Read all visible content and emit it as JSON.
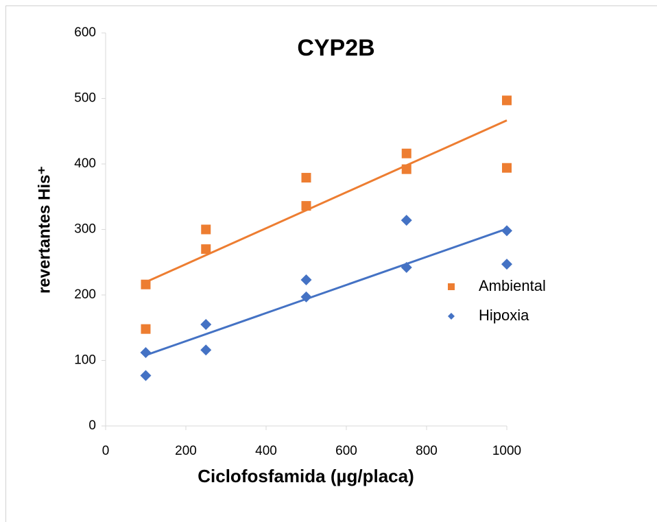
{
  "chart_data": {
    "type": "scatter",
    "title": "CYP2B",
    "xlabel": "Ciclofosfamida (µg/placa)",
    "ylabel": "revertantes His⁺",
    "x": [
      100,
      100,
      250,
      250,
      500,
      500,
      750,
      750,
      1000,
      1000
    ],
    "series": [
      {
        "name": "Ambiental",
        "color": "#ED7D31",
        "marker": "square",
        "values": [
          216,
          148,
          300,
          270,
          379,
          336,
          416,
          392,
          497,
          394
        ]
      },
      {
        "name": "Hipoxia",
        "color": "#4472C4",
        "marker": "diamond",
        "values": [
          112,
          77,
          155,
          116,
          223,
          197,
          314,
          242,
          298,
          247
        ]
      }
    ],
    "trendline": true,
    "xlim": [
      0,
      1000
    ],
    "xticks": [
      0,
      200,
      400,
      600,
      800,
      1000
    ],
    "ylim": [
      0,
      600
    ],
    "yticks": [
      0,
      100,
      200,
      300,
      400,
      500,
      600
    ],
    "legend": "right"
  }
}
